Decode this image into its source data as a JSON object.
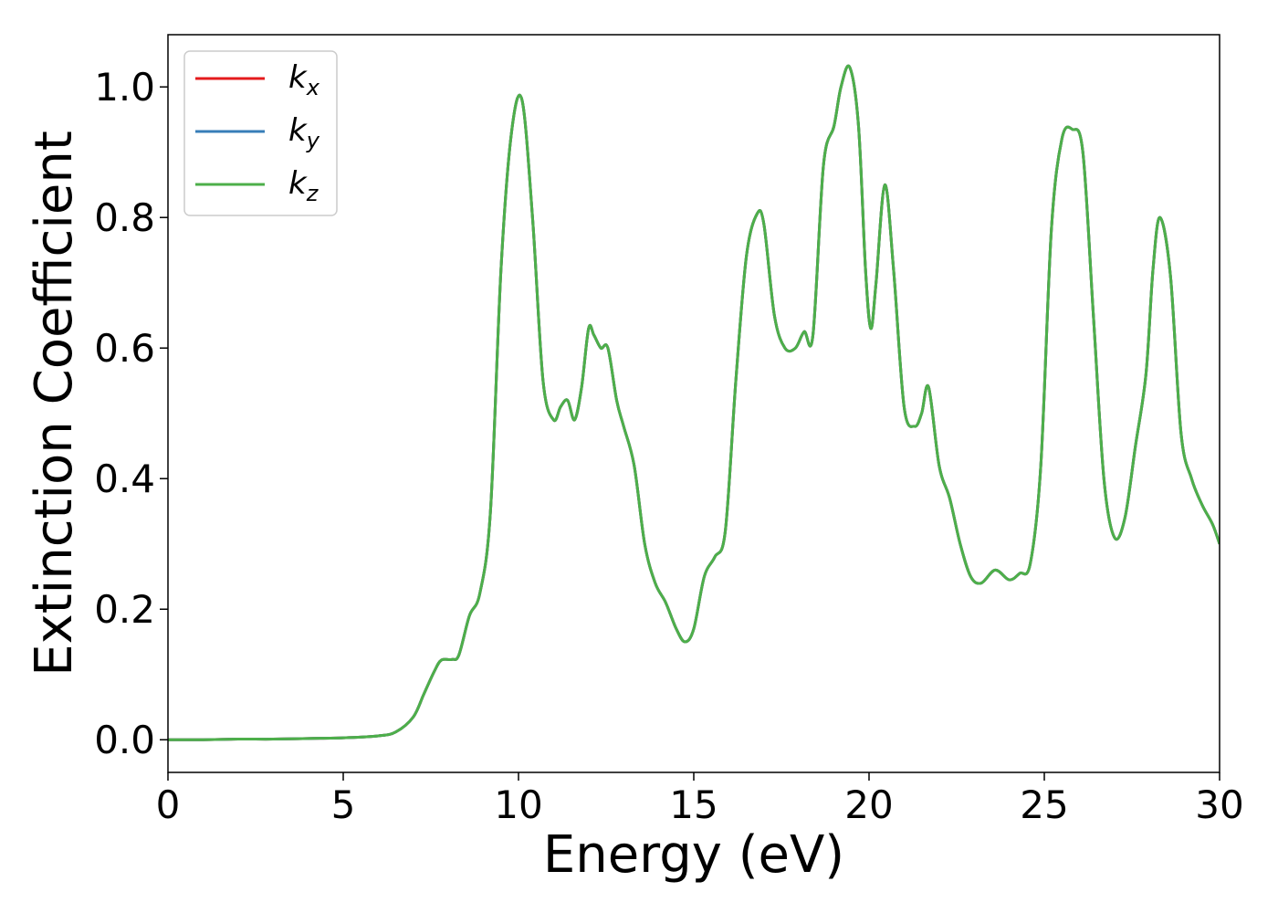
{
  "chart_data": {
    "type": "line",
    "title": "",
    "xlabel": "Energy (eV)",
    "ylabel": "Extinction Coefficient",
    "xlim": [
      0,
      30
    ],
    "ylim": [
      -0.05,
      1.08
    ],
    "xticks": [
      0,
      5,
      10,
      15,
      20,
      25,
      30
    ],
    "xtick_labels": [
      "0",
      "5",
      "10",
      "15",
      "20",
      "25",
      "30"
    ],
    "yticks": [
      0.0,
      0.2,
      0.4,
      0.6,
      0.8,
      1.0
    ],
    "ytick_labels": [
      "0.0",
      "0.2",
      "0.4",
      "0.6",
      "0.8",
      "1.0"
    ],
    "grid": false,
    "legend_position": "top-left",
    "x": [
      0,
      1,
      2,
      3,
      4,
      5,
      6,
      6.5,
      7,
      7.3,
      7.6,
      7.8,
      8.1,
      8.3,
      8.6,
      8.9,
      9.2,
      9.5,
      9.8,
      10.1,
      10.4,
      10.7,
      11.0,
      11.2,
      11.4,
      11.6,
      11.8,
      12.0,
      12.15,
      12.35,
      12.55,
      12.8,
      13.0,
      13.3,
      13.6,
      13.9,
      14.2,
      14.5,
      14.75,
      15.0,
      15.3,
      15.6,
      15.9,
      16.2,
      16.5,
      16.8,
      17.0,
      17.3,
      17.6,
      17.9,
      18.15,
      18.4,
      18.7,
      19.0,
      19.2,
      19.45,
      19.7,
      19.9,
      20.05,
      20.2,
      20.45,
      20.7,
      21.0,
      21.3,
      21.5,
      21.7,
      22.0,
      22.3,
      22.6,
      22.9,
      23.2,
      23.6,
      24.0,
      24.3,
      24.6,
      24.9,
      25.2,
      25.5,
      25.8,
      26.1,
      26.4,
      26.7,
      27.0,
      27.3,
      27.6,
      27.9,
      28.1,
      28.3,
      28.6,
      28.9,
      29.2,
      29.5,
      29.8,
      30.0
    ],
    "series": [
      {
        "name": "k_x",
        "label_main": "k",
        "label_sub": "x",
        "color": "#e41a1c",
        "y": [
          0.0,
          0.0,
          0.001,
          0.001,
          0.002,
          0.003,
          0.006,
          0.012,
          0.035,
          0.07,
          0.105,
          0.122,
          0.123,
          0.13,
          0.19,
          0.225,
          0.35,
          0.72,
          0.93,
          0.98,
          0.8,
          0.55,
          0.49,
          0.51,
          0.52,
          0.49,
          0.54,
          0.63,
          0.62,
          0.6,
          0.6,
          0.52,
          0.48,
          0.42,
          0.3,
          0.24,
          0.21,
          0.17,
          0.15,
          0.17,
          0.25,
          0.28,
          0.32,
          0.55,
          0.74,
          0.805,
          0.79,
          0.65,
          0.6,
          0.6,
          0.625,
          0.62,
          0.88,
          0.94,
          1.0,
          1.03,
          0.94,
          0.72,
          0.63,
          0.7,
          0.85,
          0.72,
          0.51,
          0.48,
          0.5,
          0.54,
          0.42,
          0.37,
          0.3,
          0.25,
          0.24,
          0.26,
          0.245,
          0.255,
          0.27,
          0.42,
          0.78,
          0.92,
          0.935,
          0.9,
          0.65,
          0.4,
          0.31,
          0.34,
          0.45,
          0.56,
          0.72,
          0.8,
          0.71,
          0.47,
          0.4,
          0.36,
          0.33,
          0.3
        ]
      },
      {
        "name": "k_y",
        "label_main": "k",
        "label_sub": "y",
        "color": "#377eb8",
        "y": [
          0.0,
          0.0,
          0.001,
          0.001,
          0.002,
          0.003,
          0.006,
          0.012,
          0.035,
          0.07,
          0.105,
          0.122,
          0.123,
          0.13,
          0.19,
          0.225,
          0.35,
          0.72,
          0.93,
          0.98,
          0.8,
          0.55,
          0.49,
          0.51,
          0.52,
          0.49,
          0.54,
          0.63,
          0.62,
          0.6,
          0.6,
          0.52,
          0.48,
          0.42,
          0.3,
          0.24,
          0.21,
          0.17,
          0.15,
          0.17,
          0.25,
          0.28,
          0.32,
          0.55,
          0.74,
          0.805,
          0.79,
          0.65,
          0.6,
          0.6,
          0.625,
          0.62,
          0.88,
          0.94,
          1.0,
          1.03,
          0.94,
          0.72,
          0.63,
          0.7,
          0.85,
          0.72,
          0.51,
          0.48,
          0.5,
          0.54,
          0.42,
          0.37,
          0.3,
          0.25,
          0.24,
          0.26,
          0.245,
          0.255,
          0.27,
          0.42,
          0.78,
          0.92,
          0.935,
          0.9,
          0.65,
          0.4,
          0.31,
          0.34,
          0.45,
          0.56,
          0.72,
          0.8,
          0.71,
          0.47,
          0.4,
          0.36,
          0.33,
          0.3
        ]
      },
      {
        "name": "k_z",
        "label_main": "k",
        "label_sub": "z",
        "color": "#4daf4a",
        "y": [
          0.0,
          0.0,
          0.001,
          0.001,
          0.002,
          0.003,
          0.006,
          0.012,
          0.035,
          0.07,
          0.105,
          0.122,
          0.123,
          0.13,
          0.19,
          0.225,
          0.35,
          0.72,
          0.93,
          0.98,
          0.8,
          0.55,
          0.49,
          0.51,
          0.52,
          0.49,
          0.54,
          0.63,
          0.62,
          0.6,
          0.6,
          0.52,
          0.48,
          0.42,
          0.3,
          0.24,
          0.21,
          0.17,
          0.15,
          0.17,
          0.25,
          0.28,
          0.32,
          0.55,
          0.74,
          0.805,
          0.79,
          0.65,
          0.6,
          0.6,
          0.625,
          0.62,
          0.88,
          0.94,
          1.0,
          1.03,
          0.94,
          0.72,
          0.63,
          0.7,
          0.85,
          0.72,
          0.51,
          0.48,
          0.5,
          0.54,
          0.42,
          0.37,
          0.3,
          0.25,
          0.24,
          0.26,
          0.245,
          0.255,
          0.27,
          0.42,
          0.78,
          0.92,
          0.935,
          0.9,
          0.65,
          0.4,
          0.31,
          0.34,
          0.45,
          0.56,
          0.72,
          0.8,
          0.71,
          0.47,
          0.4,
          0.36,
          0.33,
          0.3
        ]
      }
    ]
  }
}
